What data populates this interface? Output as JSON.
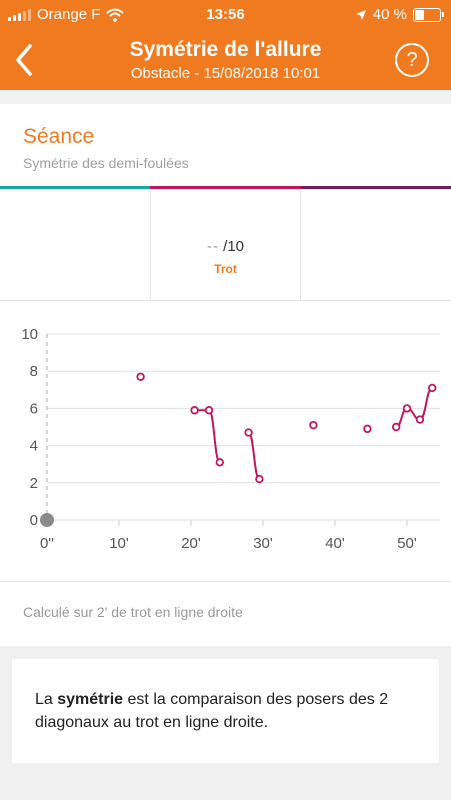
{
  "status_bar": {
    "carrier": "Orange F",
    "time": "13:56",
    "battery": "40 %"
  },
  "nav": {
    "title": "Symétrie de l'allure",
    "subtitle": "Obstacle - 15/08/2018 10:01",
    "help": "?"
  },
  "section": {
    "title": "Séance",
    "subtitle": "Symétrie des demi-foulées"
  },
  "colors": {
    "accent": "#f07a1f",
    "series": "#c0185e",
    "bar_teal": "#17a899",
    "bar_magenta": "#c0185e",
    "bar_purple": "#6e1e5a"
  },
  "score": {
    "value": "--",
    "scale": "/10",
    "gait": "Trot"
  },
  "chart_data": {
    "type": "line",
    "xlabel": "",
    "ylabel": "",
    "ylim": [
      0,
      10
    ],
    "y_ticks": [
      "0",
      "2",
      "4",
      "6",
      "8",
      "10"
    ],
    "x_ticks": [
      "0''",
      "10'",
      "20'",
      "30'",
      "40'",
      "50'"
    ],
    "x_tick_values": [
      0,
      10,
      20,
      30,
      40,
      50
    ],
    "xlim": [
      -0.5,
      54
    ],
    "origin_marker": [
      0,
      0
    ],
    "series": [
      {
        "segments": [
          [
            [
              13,
              7.7
            ]
          ],
          [
            [
              20.5,
              5.9
            ],
            [
              22.5,
              5.9
            ],
            [
              24,
              3.1
            ]
          ],
          [
            [
              28,
              4.7
            ],
            [
              29.5,
              2.2
            ]
          ],
          [
            [
              37,
              5.1
            ]
          ],
          [
            [
              44.5,
              4.9
            ]
          ],
          [
            [
              48.5,
              5.0
            ],
            [
              50,
              6.0
            ],
            [
              51.8,
              5.4
            ],
            [
              53.5,
              7.1
            ]
          ]
        ]
      }
    ]
  },
  "footer_note": "Calculé sur 2' de trot en ligne droite",
  "info": {
    "before": "La ",
    "bold": "symétrie",
    "after": " est la comparaison des posers des 2 diagonaux au trot en ligne droite."
  }
}
